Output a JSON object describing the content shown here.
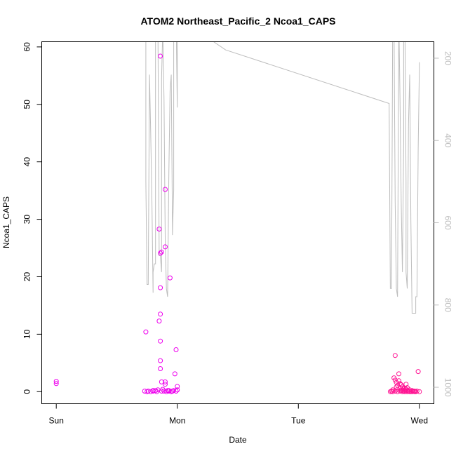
{
  "chart_data": {
    "type": "scatter",
    "title": "ATOM2 Northeast_Pacific_2 Ncoa1_CAPS",
    "xlabel": "Date",
    "ylabel": "Ncoa1_CAPS",
    "x_axis": {
      "ticks": [
        {
          "value": 0,
          "label": "Sun"
        },
        {
          "value": 1,
          "label": "Mon"
        },
        {
          "value": 2,
          "label": "Tue"
        },
        {
          "value": 3,
          "label": "Wed"
        }
      ],
      "range": [
        -0.12,
        3.12
      ],
      "unit": "days"
    },
    "y_axis": {
      "range": [
        -2.1,
        60.9
      ],
      "ticks": [
        0,
        10,
        20,
        30,
        40,
        50,
        60
      ]
    },
    "y2_axis": {
      "range": [
        1040,
        160
      ],
      "ticks": [
        200,
        400,
        600,
        800,
        1000
      ],
      "reversed": true,
      "color": "#bdbdbd"
    },
    "colors": {
      "points_a": "#ee00ee",
      "points_b": "#ff1493",
      "depth_line": "#bdbdbd"
    },
    "grid": false,
    "legend": "none",
    "series": [
      {
        "kind": "points",
        "color": "#ee00ee",
        "points": [
          [
            0.0,
            1.8
          ],
          [
            0.0,
            1.4
          ],
          [
            0.74,
            10.4
          ],
          [
            0.73,
            0.1
          ],
          [
            0.75,
            0.0
          ],
          [
            0.76,
            0.1
          ],
          [
            0.78,
            0.0
          ],
          [
            0.8,
            0.1
          ],
          [
            0.82,
            0.2
          ],
          [
            0.84,
            0.3
          ],
          [
            0.85,
            12.3
          ],
          [
            0.85,
            28.3
          ],
          [
            0.86,
            24.1
          ],
          [
            0.86,
            58.4
          ],
          [
            0.87,
            24.3
          ],
          [
            0.86,
            18.1
          ],
          [
            0.86,
            13.5
          ],
          [
            0.86,
            8.8
          ],
          [
            0.86,
            5.4
          ],
          [
            0.86,
            4.0
          ],
          [
            0.87,
            1.7
          ],
          [
            0.88,
            0.4
          ],
          [
            0.89,
            0.1
          ],
          [
            0.9,
            1.7
          ],
          [
            0.9,
            1.3
          ],
          [
            0.9,
            25.2
          ],
          [
            0.9,
            35.2
          ],
          [
            0.92,
            0.2
          ],
          [
            0.93,
            0.1
          ],
          [
            0.94,
            19.8
          ],
          [
            0.95,
            0.0
          ],
          [
            0.96,
            0.1
          ],
          [
            0.97,
            0.2
          ],
          [
            0.98,
            3.1
          ],
          [
            0.99,
            7.3
          ],
          [
            1.0,
            0.9
          ],
          [
            1.0,
            0.3
          ],
          [
            0.99,
            0.1
          ],
          [
            0.8,
            0.2
          ],
          [
            0.83,
            0.0
          ],
          [
            0.87,
            0.1
          ],
          [
            0.91,
            0.0
          ],
          [
            0.93,
            0.2
          ]
        ]
      },
      {
        "kind": "points",
        "color": "#ff1493",
        "points": [
          [
            2.76,
            0.0
          ],
          [
            2.77,
            0.1
          ],
          [
            2.78,
            0.3
          ],
          [
            2.79,
            2.4
          ],
          [
            2.8,
            2.0
          ],
          [
            2.8,
            6.3
          ],
          [
            2.81,
            1.6
          ],
          [
            2.81,
            0.8
          ],
          [
            2.82,
            1.1
          ],
          [
            2.82,
            0.4
          ],
          [
            2.83,
            1.9
          ],
          [
            2.83,
            3.1
          ],
          [
            2.84,
            1.4
          ],
          [
            2.84,
            0.6
          ],
          [
            2.85,
            0.2
          ],
          [
            2.85,
            1.2
          ],
          [
            2.86,
            0.8
          ],
          [
            2.86,
            0.3
          ],
          [
            2.87,
            0.5
          ],
          [
            2.87,
            0.1
          ],
          [
            2.88,
            0.6
          ],
          [
            2.88,
            0.2
          ],
          [
            2.89,
            1.3
          ],
          [
            2.89,
            0.4
          ],
          [
            2.9,
            0.0
          ],
          [
            2.9,
            0.7
          ],
          [
            2.91,
            0.1
          ],
          [
            2.92,
            0.3
          ],
          [
            2.93,
            0.0
          ],
          [
            2.94,
            0.2
          ],
          [
            2.95,
            0.1
          ],
          [
            2.96,
            0.0
          ],
          [
            2.97,
            0.0
          ],
          [
            2.98,
            0.1
          ],
          [
            2.99,
            3.5
          ],
          [
            3.0,
            0.0
          ],
          [
            2.78,
            0.0
          ],
          [
            2.8,
            0.1
          ],
          [
            2.82,
            0.0
          ],
          [
            2.84,
            0.1
          ],
          [
            2.86,
            0.0
          ],
          [
            2.88,
            0.0
          ],
          [
            2.9,
            0.2
          ],
          [
            2.92,
            0.0
          ],
          [
            2.94,
            0.0
          ],
          [
            2.96,
            0.1
          ]
        ]
      },
      {
        "kind": "line",
        "axis": "y2",
        "color": "#bdbdbd",
        "points": [
          [
            0.74,
            100
          ],
          [
            0.74,
            500
          ],
          [
            0.75,
            750
          ],
          [
            0.76,
            750
          ],
          [
            0.77,
            240
          ],
          [
            0.78,
            380
          ],
          [
            0.79,
            540
          ],
          [
            0.8,
            770
          ],
          [
            0.8,
            720
          ],
          [
            0.81,
            700
          ],
          [
            0.82,
            700
          ],
          [
            0.82,
            120
          ],
          [
            0.84,
            120
          ],
          [
            0.85,
            680
          ],
          [
            0.86,
            680
          ],
          [
            0.87,
            720
          ],
          [
            0.87,
            250
          ],
          [
            0.88,
            130
          ],
          [
            0.89,
            300
          ],
          [
            0.9,
            640
          ],
          [
            0.91,
            760
          ],
          [
            0.92,
            780
          ],
          [
            0.93,
            480
          ],
          [
            0.94,
            280
          ],
          [
            0.95,
            240
          ],
          [
            0.96,
            600
          ],
          [
            0.96,
            630
          ],
          [
            0.97,
            520
          ],
          [
            0.97,
            100
          ],
          [
            0.99,
            100
          ],
          [
            1.0,
            320
          ],
          [
            1.0,
            100
          ],
          [
            1.4,
            180
          ],
          [
            2.75,
            310
          ],
          [
            2.76,
            760
          ],
          [
            2.77,
            760
          ],
          [
            2.78,
            100
          ],
          [
            2.79,
            100
          ],
          [
            2.8,
            550
          ],
          [
            2.81,
            760
          ],
          [
            2.82,
            780
          ],
          [
            2.83,
            100
          ],
          [
            2.84,
            300
          ],
          [
            2.85,
            550
          ],
          [
            2.86,
            720
          ],
          [
            2.87,
            400
          ],
          [
            2.87,
            100
          ],
          [
            2.88,
            100
          ],
          [
            2.89,
            500
          ],
          [
            2.89,
            720
          ],
          [
            2.9,
            760
          ],
          [
            2.91,
            360
          ],
          [
            2.92,
            240
          ],
          [
            2.93,
            600
          ],
          [
            2.94,
            820
          ],
          [
            2.95,
            820
          ],
          [
            2.96,
            820
          ],
          [
            2.97,
            820
          ],
          [
            2.97,
            780
          ],
          [
            2.98,
            780
          ],
          [
            2.99,
            420
          ],
          [
            3.0,
            220
          ],
          [
            3.0,
            210
          ]
        ]
      }
    ]
  }
}
